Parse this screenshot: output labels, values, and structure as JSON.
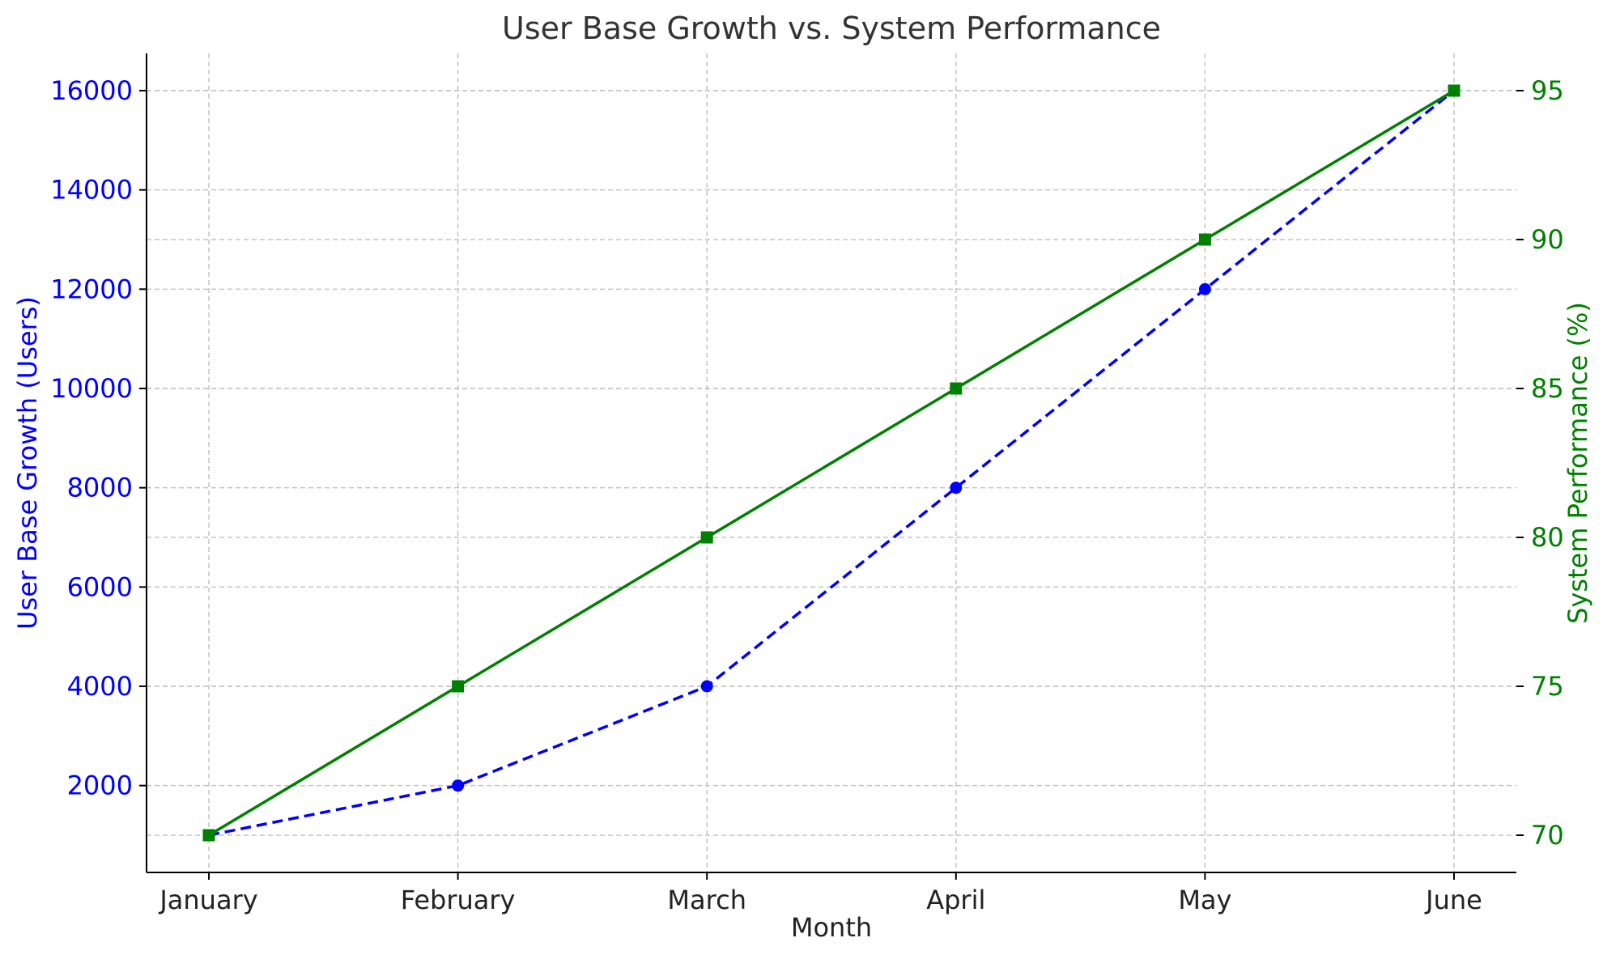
{
  "chart_data": {
    "type": "line",
    "title": "User Base Growth vs. System Performance",
    "xlabel": "Month",
    "categories": [
      "January",
      "February",
      "March",
      "April",
      "May",
      "June"
    ],
    "y_left": {
      "label": "User Base Growth (Users)",
      "color": "#0000ff",
      "ticks": [
        2000,
        4000,
        6000,
        8000,
        10000,
        12000,
        14000,
        16000
      ],
      "ylim": [
        250,
        16750
      ]
    },
    "y_right": {
      "label": "System Performance (%)",
      "color": "#008000",
      "ticks": [
        70,
        75,
        80,
        85,
        90,
        95
      ],
      "ylim": [
        68.75,
        96.25
      ]
    },
    "series": [
      {
        "axis": "left",
        "color": "#0000ff",
        "line_style": "dashed",
        "marker": "circle",
        "values": [
          1000,
          2000,
          4000,
          8000,
          12000,
          16000
        ]
      },
      {
        "axis": "right",
        "color": "#008000",
        "line_style": "solid",
        "marker": "square",
        "values": [
          70,
          75,
          80,
          85,
          90,
          95
        ]
      }
    ],
    "grid": true,
    "legend": false
  }
}
